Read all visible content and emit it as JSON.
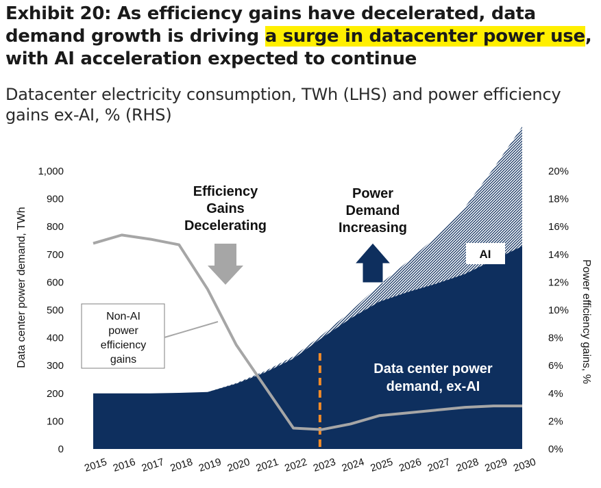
{
  "title": {
    "part1": "Exhibit 20: As efficiency gains have decelerated, data demand growth is driving ",
    "highlight": "a surge in datacenter power use",
    "part2": ", with AI acceleration expected to continue"
  },
  "subtitle": "Datacenter electricity consumption, TWh (LHS) and power efficiency gains ex-AI, % (RHS)",
  "chart_data": {
    "type": "area",
    "title": "Datacenter electricity consumption, TWh (LHS) and power efficiency gains ex-AI, % (RHS)",
    "x": [
      "2015",
      "2016",
      "2017",
      "2018",
      "2019",
      "2020",
      "2021",
      "2022",
      "2023",
      "2024",
      "2025",
      "2026",
      "2027",
      "2028",
      "2029",
      "2030"
    ],
    "ylabel_left": "Data center power demand, TWh",
    "ylabel_right": "Power efficiency gains, %",
    "left_ticks": [
      "0",
      "100",
      "200",
      "300",
      "400",
      "500",
      "600",
      "700",
      "800",
      "900",
      "1,000"
    ],
    "right_ticks": [
      "0%",
      "2%",
      "4%",
      "6%",
      "8%",
      "10%",
      "12%",
      "14%",
      "16%",
      "18%",
      "20%"
    ],
    "series": [
      {
        "name": "Data center power demand, ex-AI",
        "axis": "left",
        "values": [
          200,
          200,
          200,
          202,
          205,
          235,
          275,
          325,
          400,
          470,
          530,
          565,
          595,
          630,
          680,
          730
        ]
      },
      {
        "name": "AI",
        "axis": "left",
        "values": [
          0,
          0,
          0,
          0,
          0,
          2,
          5,
          8,
          10,
          25,
          60,
          110,
          170,
          240,
          330,
          430
        ]
      },
      {
        "name": "Non-AI power efficiency gains",
        "axis": "right",
        "values": [
          14.8,
          15.4,
          15.1,
          14.7,
          11.5,
          7.5,
          4.5,
          1.5,
          1.4,
          1.8,
          2.4,
          2.6,
          2.8,
          3.0,
          3.1,
          3.1
        ]
      }
    ],
    "vline_year": "2023",
    "annotations": {
      "efficiency": [
        "Efficiency",
        "Gains",
        "Decelerating"
      ],
      "power": [
        "Power",
        "Demand",
        "Increasing"
      ],
      "ai": "AI",
      "exai": [
        "Data center power",
        "demand, ex-AI"
      ],
      "nonai": [
        "Non-AI",
        "power",
        "efficiency",
        "gains"
      ]
    }
  },
  "colors": {
    "navy": "#0e2f5e",
    "efficiency_line": "#a6a6a6",
    "arrow_gray": "#a6a6a6",
    "vline": "#f28c28",
    "highlight": "#ffef00"
  }
}
